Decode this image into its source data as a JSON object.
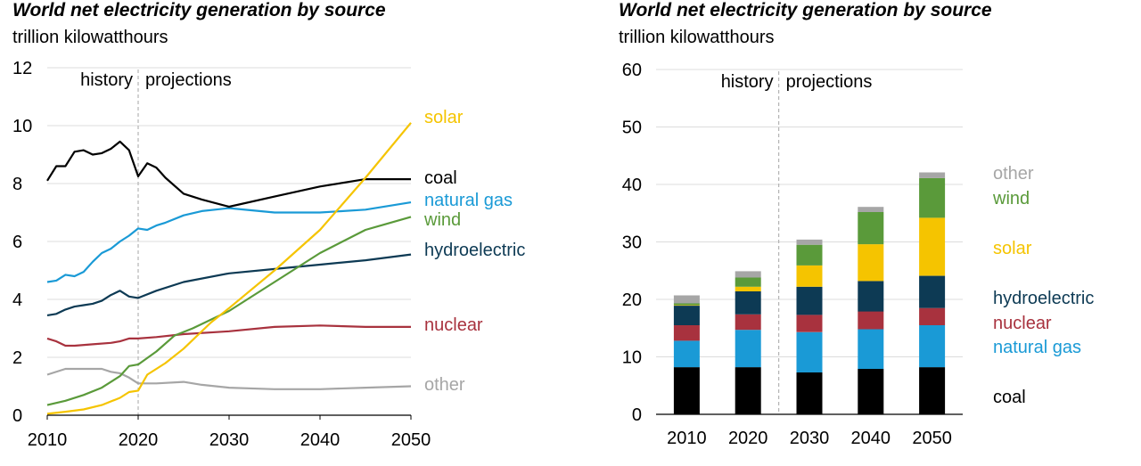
{
  "charts": [
    {
      "title": "World net electricity generation by source",
      "subtitle": "trillion kilowatthours",
      "history_label": "history",
      "projections_label": "projections"
    },
    {
      "title": "World net electricity generation by source",
      "subtitle": "trillion kilowatthours",
      "history_label": "history",
      "projections_label": "projections"
    }
  ],
  "chart_data": [
    {
      "type": "line",
      "xlim": [
        2010,
        2050
      ],
      "ylim": [
        0,
        12
      ],
      "xticks": [
        "2010",
        "2020",
        "2030",
        "2040",
        "2050"
      ],
      "yticks": [
        "0",
        "2",
        "4",
        "6",
        "8",
        "10",
        "12"
      ],
      "divider_x": 2020,
      "grid": true,
      "series": [
        {
          "name": "solar",
          "color": "#f5c400",
          "x": [
            2010,
            2012,
            2014,
            2016,
            2018,
            2019,
            2020,
            2021,
            2023,
            2025,
            2028,
            2030,
            2035,
            2040,
            2045,
            2050
          ],
          "y": [
            0.05,
            0.12,
            0.2,
            0.35,
            0.6,
            0.8,
            0.85,
            1.4,
            1.8,
            2.3,
            3.2,
            3.7,
            5.0,
            6.4,
            8.2,
            10.1
          ]
        },
        {
          "name": "coal",
          "color": "#000000",
          "x": [
            2010,
            2011,
            2012,
            2013,
            2014,
            2015,
            2016,
            2017,
            2018,
            2019,
            2020,
            2021,
            2022,
            2023,
            2025,
            2027,
            2030,
            2035,
            2040,
            2045,
            2050
          ],
          "y": [
            8.1,
            8.6,
            8.6,
            9.1,
            9.15,
            9.0,
            9.05,
            9.2,
            9.45,
            9.15,
            8.25,
            8.7,
            8.55,
            8.2,
            7.65,
            7.45,
            7.2,
            7.55,
            7.9,
            8.15,
            8.15
          ]
        },
        {
          "name": "natural gas",
          "color": "#1a9ad6",
          "x": [
            2010,
            2011,
            2012,
            2013,
            2014,
            2015,
            2016,
            2017,
            2018,
            2019,
            2020,
            2021,
            2022,
            2023,
            2025,
            2027,
            2030,
            2035,
            2040,
            2045,
            2050
          ],
          "y": [
            4.6,
            4.65,
            4.85,
            4.8,
            4.95,
            5.3,
            5.6,
            5.75,
            6.0,
            6.2,
            6.45,
            6.4,
            6.55,
            6.65,
            6.9,
            7.05,
            7.15,
            7.0,
            7.0,
            7.1,
            7.35
          ]
        },
        {
          "name": "wind",
          "color": "#5a9a3a",
          "x": [
            2010,
            2012,
            2014,
            2016,
            2018,
            2019,
            2020,
            2022,
            2024,
            2026,
            2030,
            2035,
            2040,
            2045,
            2050
          ],
          "y": [
            0.35,
            0.5,
            0.7,
            0.95,
            1.35,
            1.7,
            1.75,
            2.2,
            2.75,
            3.0,
            3.6,
            4.6,
            5.6,
            6.4,
            6.85
          ]
        },
        {
          "name": "hydroelectric",
          "color": "#0d3a54",
          "x": [
            2010,
            2011,
            2012,
            2013,
            2014,
            2015,
            2016,
            2017,
            2018,
            2019,
            2020,
            2022,
            2025,
            2030,
            2035,
            2040,
            2045,
            2050
          ],
          "y": [
            3.45,
            3.5,
            3.65,
            3.75,
            3.8,
            3.85,
            3.95,
            4.15,
            4.3,
            4.1,
            4.05,
            4.3,
            4.6,
            4.9,
            5.05,
            5.2,
            5.35,
            5.55
          ]
        },
        {
          "name": "nuclear",
          "color": "#a8323e",
          "x": [
            2010,
            2011,
            2012,
            2013,
            2015,
            2017,
            2018,
            2019,
            2020,
            2022,
            2025,
            2030,
            2035,
            2040,
            2045,
            2050
          ],
          "y": [
            2.65,
            2.55,
            2.4,
            2.4,
            2.45,
            2.5,
            2.55,
            2.65,
            2.65,
            2.7,
            2.8,
            2.9,
            3.05,
            3.1,
            3.05,
            3.05
          ]
        },
        {
          "name": "other",
          "color": "#a6a6a6",
          "x": [
            2010,
            2012,
            2014,
            2016,
            2017,
            2018,
            2019,
            2020,
            2022,
            2025,
            2027,
            2030,
            2035,
            2040,
            2045,
            2050
          ],
          "y": [
            1.4,
            1.6,
            1.6,
            1.6,
            1.5,
            1.45,
            1.3,
            1.1,
            1.1,
            1.15,
            1.05,
            0.95,
            0.9,
            0.9,
            0.95,
            1.0
          ]
        }
      ]
    },
    {
      "type": "bar",
      "stacked": true,
      "categories": [
        "2010",
        "2020",
        "2030",
        "2040",
        "2050"
      ],
      "ylim": [
        0,
        60
      ],
      "yticks": [
        "0",
        "10",
        "20",
        "30",
        "40",
        "50",
        "60"
      ],
      "grid": true,
      "divider_after_category": "2020",
      "series": [
        {
          "name": "coal",
          "color": "#000000",
          "values": [
            8.2,
            8.2,
            7.3,
            7.9,
            8.2
          ]
        },
        {
          "name": "natural gas",
          "color": "#1a9ad6",
          "values": [
            4.6,
            6.5,
            7.0,
            6.9,
            7.3
          ]
        },
        {
          "name": "nuclear",
          "color": "#a8323e",
          "values": [
            2.7,
            2.7,
            3.0,
            3.1,
            3.0
          ]
        },
        {
          "name": "hydroelectric",
          "color": "#0d3a54",
          "values": [
            3.4,
            4.0,
            4.9,
            5.3,
            5.6
          ]
        },
        {
          "name": "solar",
          "color": "#f5c400",
          "values": [
            0.1,
            0.8,
            3.7,
            6.4,
            10.1
          ]
        },
        {
          "name": "wind",
          "color": "#5a9a3a",
          "values": [
            0.3,
            1.6,
            3.6,
            5.6,
            6.9
          ]
        },
        {
          "name": "other",
          "color": "#a6a6a6",
          "values": [
            1.4,
            1.1,
            0.9,
            0.9,
            1.0
          ]
        }
      ]
    }
  ]
}
